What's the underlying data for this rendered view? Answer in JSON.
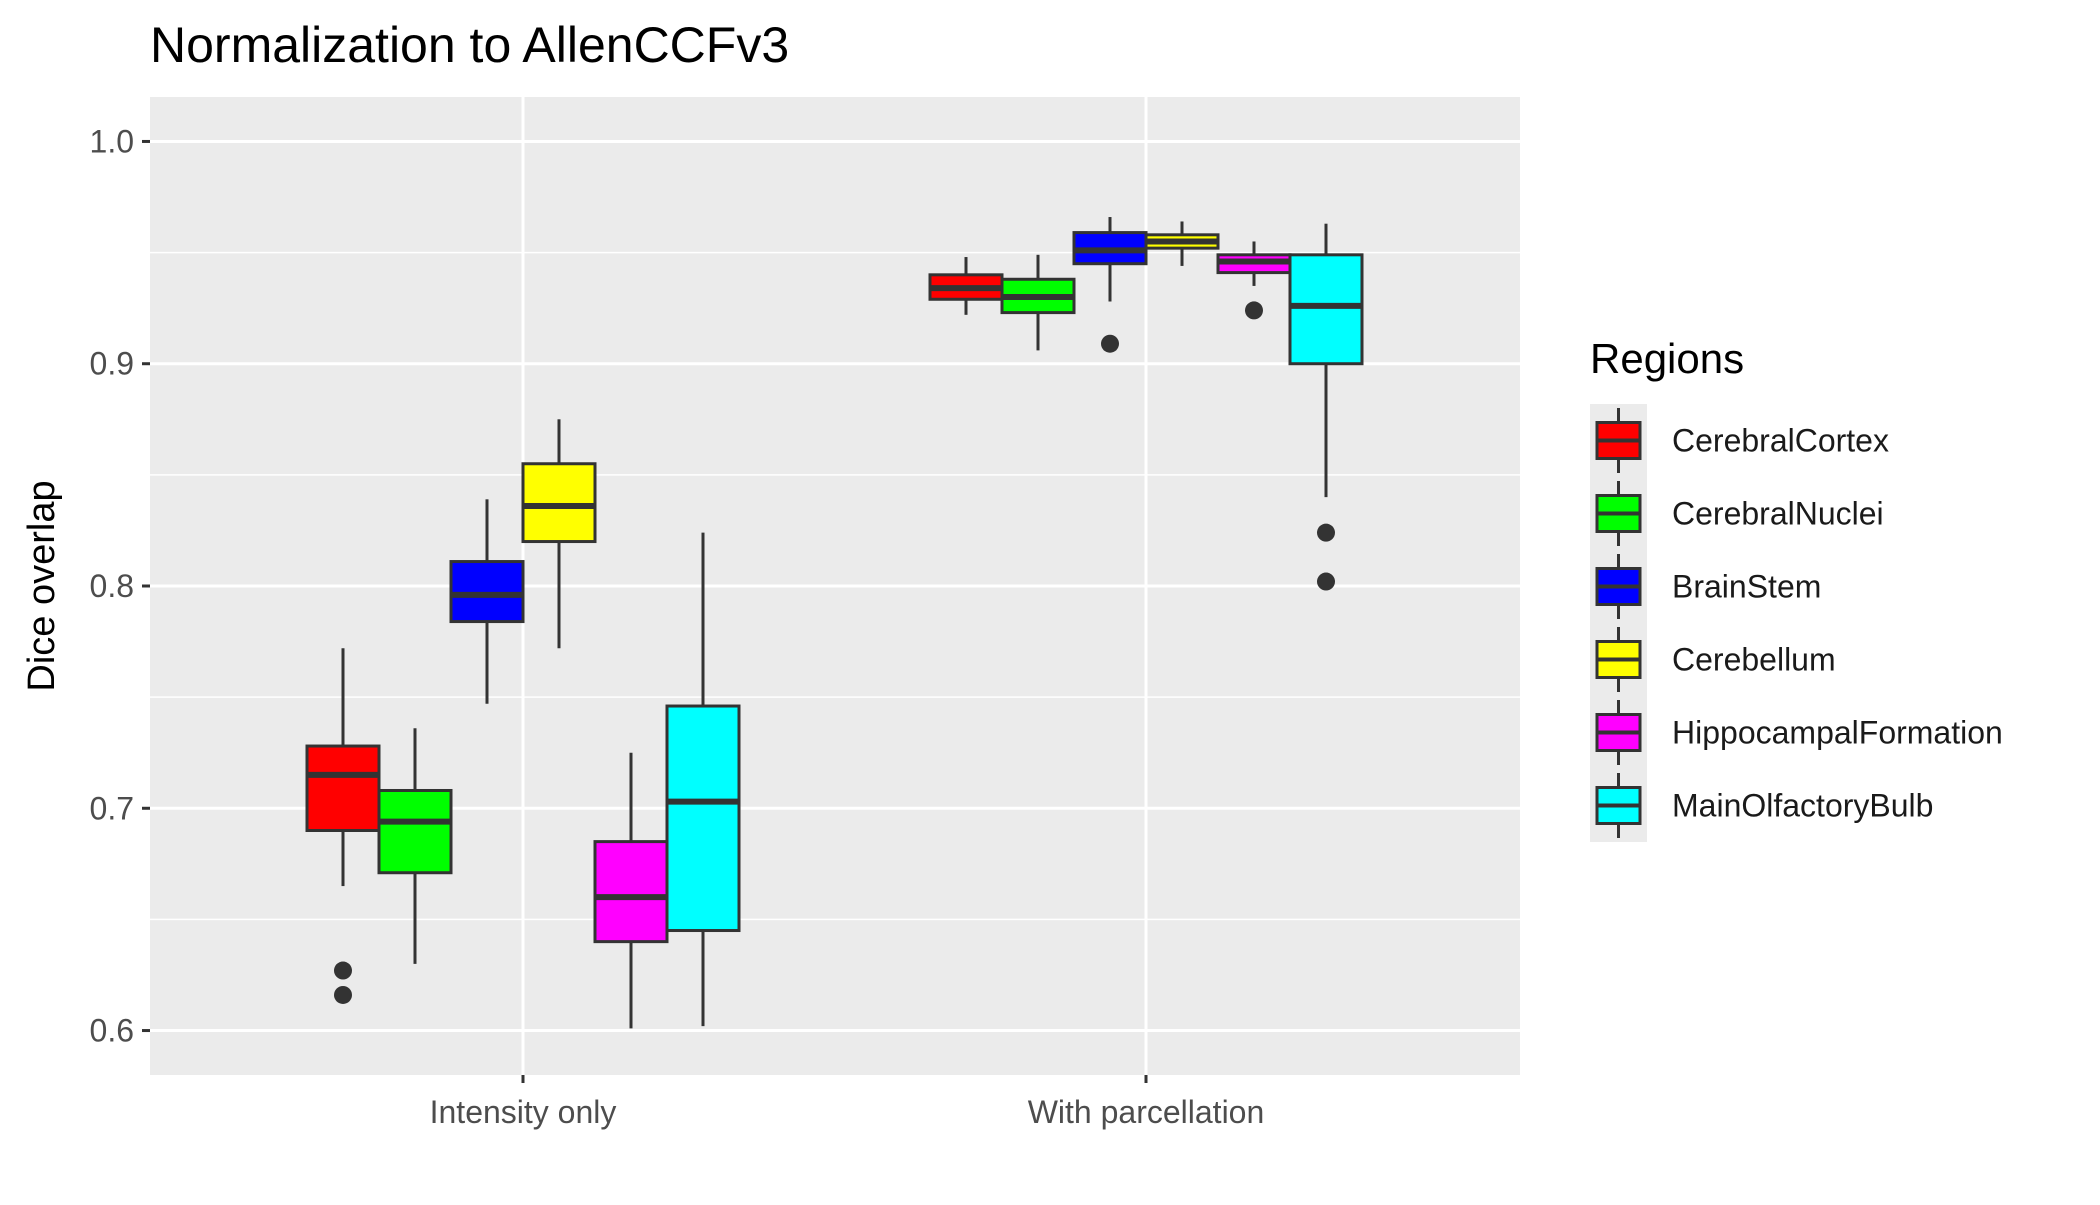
{
  "chart_data": {
    "type": "box",
    "title": "Normalization to AllenCCFv3",
    "xlabel": "",
    "ylabel": "Dice overlap",
    "categories": [
      "Intensity only",
      "With parcellation"
    ],
    "ylim": [
      0.58,
      1.02
    ],
    "yticks": [
      "0.6",
      "0.7",
      "0.8",
      "0.9",
      "1.0"
    ],
    "grid": true,
    "legend": {
      "title": "Regions",
      "placement": "right",
      "entries": [
        "CerebralCortex",
        "CerebralNuclei",
        "BrainStem",
        "Cerebellum",
        "HippocampalFormation",
        "MainOlfactoryBulb"
      ]
    },
    "series": [
      {
        "name": "CerebralCortex",
        "color": "#FF0000",
        "boxes": [
          {
            "category": "Intensity only",
            "whisker_low": 0.665,
            "q1": 0.69,
            "median": 0.715,
            "q3": 0.728,
            "whisker_high": 0.772,
            "outliers": [
              0.627,
              0.616
            ]
          },
          {
            "category": "With parcellation",
            "whisker_low": 0.922,
            "q1": 0.929,
            "median": 0.934,
            "q3": 0.94,
            "whisker_high": 0.948,
            "outliers": []
          }
        ]
      },
      {
        "name": "CerebralNuclei",
        "color": "#00FF00",
        "boxes": [
          {
            "category": "Intensity only",
            "whisker_low": 0.63,
            "q1": 0.671,
            "median": 0.694,
            "q3": 0.708,
            "whisker_high": 0.736,
            "outliers": []
          },
          {
            "category": "With parcellation",
            "whisker_low": 0.906,
            "q1": 0.923,
            "median": 0.93,
            "q3": 0.938,
            "whisker_high": 0.949,
            "outliers": []
          }
        ]
      },
      {
        "name": "BrainStem",
        "color": "#0000FF",
        "boxes": [
          {
            "category": "Intensity only",
            "whisker_low": 0.747,
            "q1": 0.784,
            "median": 0.796,
            "q3": 0.811,
            "whisker_high": 0.839,
            "outliers": []
          },
          {
            "category": "With parcellation",
            "whisker_low": 0.928,
            "q1": 0.945,
            "median": 0.951,
            "q3": 0.959,
            "whisker_high": 0.966,
            "outliers": [
              0.909
            ]
          }
        ]
      },
      {
        "name": "Cerebellum",
        "color": "#FFFF00",
        "boxes": [
          {
            "category": "Intensity only",
            "whisker_low": 0.772,
            "q1": 0.82,
            "median": 0.836,
            "q3": 0.855,
            "whisker_high": 0.875,
            "outliers": []
          },
          {
            "category": "With parcellation",
            "whisker_low": 0.944,
            "q1": 0.952,
            "median": 0.955,
            "q3": 0.958,
            "whisker_high": 0.964,
            "outliers": []
          }
        ]
      },
      {
        "name": "HippocampalFormation",
        "color": "#FF00FF",
        "boxes": [
          {
            "category": "Intensity only",
            "whisker_low": 0.601,
            "q1": 0.64,
            "median": 0.66,
            "q3": 0.685,
            "whisker_high": 0.725,
            "outliers": []
          },
          {
            "category": "With parcellation",
            "whisker_low": 0.935,
            "q1": 0.941,
            "median": 0.946,
            "q3": 0.949,
            "whisker_high": 0.955,
            "outliers": [
              0.924
            ]
          }
        ]
      },
      {
        "name": "MainOlfactoryBulb",
        "color": "#00FFFF",
        "boxes": [
          {
            "category": "Intensity only",
            "whisker_low": 0.602,
            "q1": 0.645,
            "median": 0.703,
            "q3": 0.746,
            "whisker_high": 0.824,
            "outliers": []
          },
          {
            "category": "With parcellation",
            "whisker_low": 0.84,
            "q1": 0.9,
            "median": 0.926,
            "q3": 0.949,
            "whisker_high": 0.963,
            "outliers": [
              0.824,
              0.802
            ]
          }
        ]
      }
    ]
  }
}
